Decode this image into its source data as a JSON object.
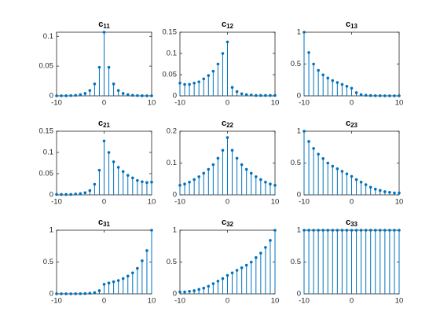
{
  "chart_data": [
    {
      "type": "stem",
      "title": {
        "text": "c",
        "subscript": "11"
      },
      "color": "#0072bd",
      "xlim": [
        -10,
        10
      ],
      "xticks": [
        -10,
        0,
        10
      ],
      "ylim": [
        0,
        0.107
      ],
      "yticks": [
        0,
        0.05,
        0.1
      ],
      "x": [
        -10,
        -9,
        -8,
        -7,
        -6,
        -5,
        -4,
        -3,
        -2,
        -1,
        0,
        1,
        2,
        3,
        4,
        5,
        6,
        7,
        8,
        9,
        10
      ],
      "values": [
        0,
        0.0001,
        0.0002,
        0.0005,
        0.001,
        0.002,
        0.004,
        0.009,
        0.02,
        0.048,
        0.107,
        0.048,
        0.02,
        0.009,
        0.004,
        0.002,
        0.001,
        0.0005,
        0.0002,
        0.0001,
        0
      ]
    },
    {
      "type": "stem",
      "title": {
        "text": "c",
        "subscript": "12"
      },
      "color": "#0072bd",
      "xlim": [
        -10,
        10
      ],
      "xticks": [
        -10,
        0,
        10
      ],
      "ylim": [
        0,
        0.15
      ],
      "yticks": [
        0,
        0.05,
        0.1,
        0.15
      ],
      "x": [
        -10,
        -9,
        -8,
        -7,
        -6,
        -5,
        -4,
        -3,
        -2,
        -1,
        0,
        1,
        2,
        3,
        4,
        5,
        6,
        7,
        8,
        9,
        10
      ],
      "values": [
        0.03,
        0.027,
        0.027,
        0.03,
        0.033,
        0.04,
        0.048,
        0.058,
        0.075,
        0.1,
        0.127,
        0.02,
        0.01,
        0.005,
        0.003,
        0.002,
        0.001,
        0.001,
        0.001,
        0.001,
        0.001
      ]
    },
    {
      "type": "stem",
      "title": {
        "text": "c",
        "subscript": "13"
      },
      "color": "#0072bd",
      "xlim": [
        -10,
        10
      ],
      "xticks": [
        -10,
        0,
        10
      ],
      "ylim": [
        0,
        1
      ],
      "yticks": [
        0,
        0.5,
        1
      ],
      "x": [
        -10,
        -9,
        -8,
        -7,
        -6,
        -5,
        -4,
        -3,
        -2,
        -1,
        0,
        1,
        2,
        3,
        4,
        5,
        6,
        7,
        8,
        9,
        10
      ],
      "values": [
        1,
        0.68,
        0.5,
        0.4,
        0.33,
        0.28,
        0.24,
        0.21,
        0.18,
        0.15,
        0.12,
        0.05,
        0.02,
        0.01,
        0.005,
        0.003,
        0.002,
        0.001,
        0.001,
        0.001,
        0.001
      ]
    },
    {
      "type": "stem",
      "title": {
        "text": "c",
        "subscript": "21"
      },
      "color": "#0072bd",
      "xlim": [
        -10,
        10
      ],
      "xticks": [
        -10,
        0,
        10
      ],
      "ylim": [
        0,
        0.15
      ],
      "yticks": [
        0,
        0.05,
        0.1,
        0.15
      ],
      "x": [
        -10,
        -9,
        -8,
        -7,
        -6,
        -5,
        -4,
        -3,
        -2,
        -1,
        0,
        1,
        2,
        3,
        4,
        5,
        6,
        7,
        8,
        9,
        10
      ],
      "values": [
        0.001,
        0.001,
        0.001,
        0.001,
        0.002,
        0.003,
        0.005,
        0.01,
        0.025,
        0.058,
        0.127,
        0.1,
        0.078,
        0.065,
        0.055,
        0.046,
        0.04,
        0.034,
        0.031,
        0.029,
        0.03
      ]
    },
    {
      "type": "stem",
      "title": {
        "text": "c",
        "subscript": "22"
      },
      "color": "#0072bd",
      "xlim": [
        -10,
        10
      ],
      "xticks": [
        -10,
        0,
        10
      ],
      "ylim": [
        0,
        0.2
      ],
      "yticks": [
        0,
        0.1,
        0.2
      ],
      "x": [
        -10,
        -9,
        -8,
        -7,
        -6,
        -5,
        -4,
        -3,
        -2,
        -1,
        0,
        1,
        2,
        3,
        4,
        5,
        6,
        7,
        8,
        9,
        10
      ],
      "values": [
        0.03,
        0.034,
        0.04,
        0.048,
        0.057,
        0.068,
        0.08,
        0.095,
        0.115,
        0.14,
        0.18,
        0.14,
        0.115,
        0.095,
        0.08,
        0.068,
        0.057,
        0.048,
        0.04,
        0.034,
        0.03
      ]
    },
    {
      "type": "stem",
      "title": {
        "text": "c",
        "subscript": "23"
      },
      "color": "#0072bd",
      "xlim": [
        -10,
        10
      ],
      "xticks": [
        -10,
        0,
        10
      ],
      "ylim": [
        0,
        1
      ],
      "yticks": [
        0,
        0.5,
        1
      ],
      "x": [
        -10,
        -9,
        -8,
        -7,
        -6,
        -5,
        -4,
        -3,
        -2,
        -1,
        0,
        1,
        2,
        3,
        4,
        5,
        6,
        7,
        8,
        9,
        10
      ],
      "values": [
        1,
        0.84,
        0.73,
        0.64,
        0.57,
        0.5,
        0.45,
        0.41,
        0.37,
        0.33,
        0.29,
        0.24,
        0.2,
        0.16,
        0.12,
        0.09,
        0.07,
        0.05,
        0.04,
        0.03,
        0.03
      ]
    },
    {
      "type": "stem",
      "title": {
        "text": "c",
        "subscript": "31"
      },
      "color": "#0072bd",
      "xlim": [
        -10,
        10
      ],
      "xticks": [
        -10,
        0,
        10
      ],
      "ylim": [
        0,
        1
      ],
      "yticks": [
        0,
        0.5,
        1
      ],
      "x": [
        -10,
        -9,
        -8,
        -7,
        -6,
        -5,
        -4,
        -3,
        -2,
        -1,
        0,
        1,
        2,
        3,
        4,
        5,
        6,
        7,
        8,
        9,
        10
      ],
      "values": [
        0.001,
        0.001,
        0.001,
        0.001,
        0.002,
        0.003,
        0.005,
        0.01,
        0.02,
        0.05,
        0.15,
        0.17,
        0.19,
        0.21,
        0.24,
        0.28,
        0.33,
        0.4,
        0.52,
        0.68,
        1
      ]
    },
    {
      "type": "stem",
      "title": {
        "text": "c",
        "subscript": "32"
      },
      "color": "#0072bd",
      "xlim": [
        -10,
        10
      ],
      "xticks": [
        -10,
        0,
        10
      ],
      "ylim": [
        0,
        1
      ],
      "yticks": [
        0,
        0.5,
        1
      ],
      "x": [
        -10,
        -9,
        -8,
        -7,
        -6,
        -5,
        -4,
        -3,
        -2,
        -1,
        0,
        1,
        2,
        3,
        4,
        5,
        6,
        7,
        8,
        9,
        10
      ],
      "values": [
        0.03,
        0.03,
        0.04,
        0.05,
        0.07,
        0.09,
        0.12,
        0.16,
        0.2,
        0.24,
        0.29,
        0.33,
        0.37,
        0.41,
        0.45,
        0.5,
        0.57,
        0.64,
        0.73,
        0.84,
        1
      ]
    },
    {
      "type": "stem",
      "title": {
        "text": "c",
        "subscript": "33"
      },
      "color": "#0072bd",
      "xlim": [
        -10,
        10
      ],
      "xticks": [
        -10,
        0,
        10
      ],
      "ylim": [
        0,
        1
      ],
      "yticks": [
        0,
        0.5,
        1
      ],
      "x": [
        -10,
        -9,
        -8,
        -7,
        -6,
        -5,
        -4,
        -3,
        -2,
        -1,
        0,
        1,
        2,
        3,
        4,
        5,
        6,
        7,
        8,
        9,
        10
      ],
      "values": [
        1,
        1,
        1,
        1,
        1,
        1,
        1,
        1,
        1,
        1,
        1,
        1,
        1,
        1,
        1,
        1,
        1,
        1,
        1,
        1,
        1
      ]
    }
  ]
}
